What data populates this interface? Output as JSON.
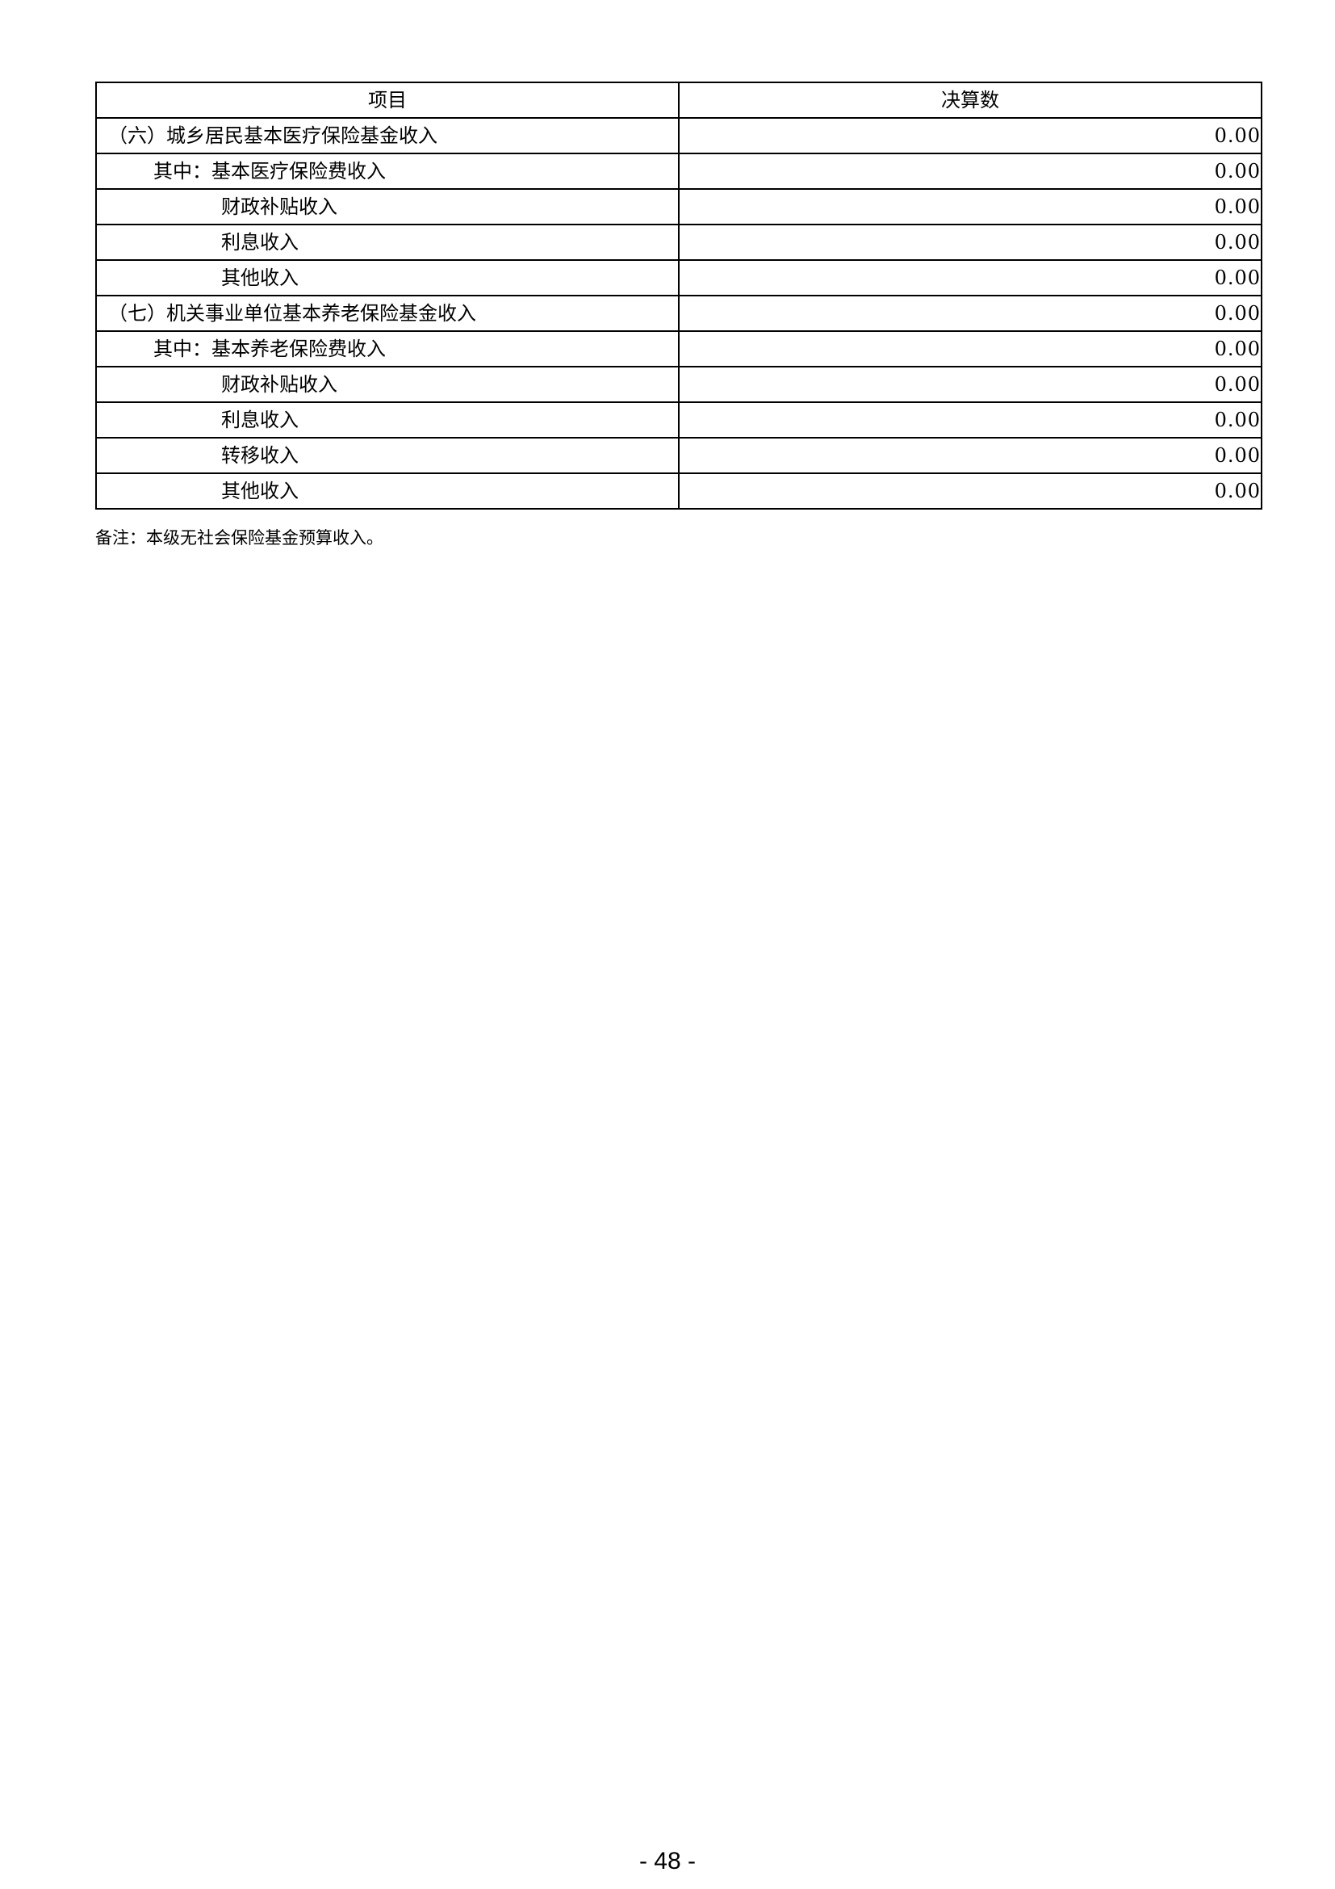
{
  "table": {
    "headers": [
      "项目",
      "决算数"
    ],
    "rows": [
      {
        "label": "（六）城乡居民基本医疗保险基金收入",
        "level": 0,
        "value": "0.00"
      },
      {
        "label": "其中：基本医疗保险费收入",
        "level": 1,
        "value": "0.00"
      },
      {
        "label": "财政补贴收入",
        "level": 2,
        "value": "0.00"
      },
      {
        "label": "利息收入",
        "level": 2,
        "value": "0.00"
      },
      {
        "label": "其他收入",
        "level": 2,
        "value": "0.00"
      },
      {
        "label": "（七）机关事业单位基本养老保险基金收入",
        "level": 0,
        "value": "0.00"
      },
      {
        "label": "其中：基本养老保险费收入",
        "level": 1,
        "value": "0.00"
      },
      {
        "label": "财政补贴收入",
        "level": 2,
        "value": "0.00"
      },
      {
        "label": "利息收入",
        "level": 2,
        "value": "0.00"
      },
      {
        "label": "转移收入",
        "level": 2,
        "value": "0.00"
      },
      {
        "label": "其他收入",
        "level": 2,
        "value": "0.00"
      }
    ]
  },
  "note": "备注：本级无社会保险基金预算收入。",
  "page_number": "- 48 -"
}
